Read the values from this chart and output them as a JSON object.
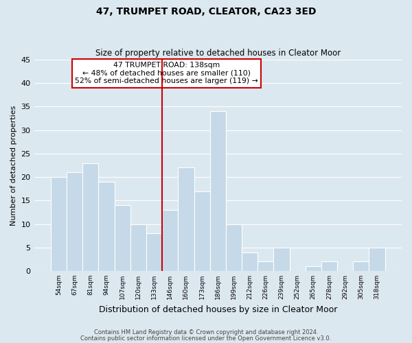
{
  "title": "47, TRUMPET ROAD, CLEATOR, CA23 3ED",
  "subtitle": "Size of property relative to detached houses in Cleator Moor",
  "xlabel": "Distribution of detached houses by size in Cleator Moor",
  "ylabel": "Number of detached properties",
  "bin_labels": [
    "54sqm",
    "67sqm",
    "81sqm",
    "94sqm",
    "107sqm",
    "120sqm",
    "133sqm",
    "146sqm",
    "160sqm",
    "173sqm",
    "186sqm",
    "199sqm",
    "212sqm",
    "226sqm",
    "239sqm",
    "252sqm",
    "265sqm",
    "278sqm",
    "292sqm",
    "305sqm",
    "318sqm"
  ],
  "bar_heights": [
    20,
    21,
    23,
    19,
    14,
    10,
    8,
    13,
    22,
    17,
    34,
    10,
    4,
    2,
    5,
    0,
    1,
    2,
    0,
    2,
    5
  ],
  "bar_color": "#c5d9e8",
  "bar_edge_color": "#ffffff",
  "vline_x_idx": 6,
  "vline_color": "#cc0000",
  "annotation_title": "47 TRUMPET ROAD: 138sqm",
  "annotation_line1": "← 48% of detached houses are smaller (110)",
  "annotation_line2": "52% of semi-detached houses are larger (119) →",
  "annotation_box_color": "#ffffff",
  "annotation_box_edge": "#cc0000",
  "ylim": [
    0,
    45
  ],
  "yticks": [
    0,
    5,
    10,
    15,
    20,
    25,
    30,
    35,
    40,
    45
  ],
  "footnote1": "Contains HM Land Registry data © Crown copyright and database right 2024.",
  "footnote2": "Contains public sector information licensed under the Open Government Licence v3.0.",
  "bg_color": "#dce8f0",
  "plot_bg_color": "#dce8f0",
  "grid_color": "#ffffff"
}
